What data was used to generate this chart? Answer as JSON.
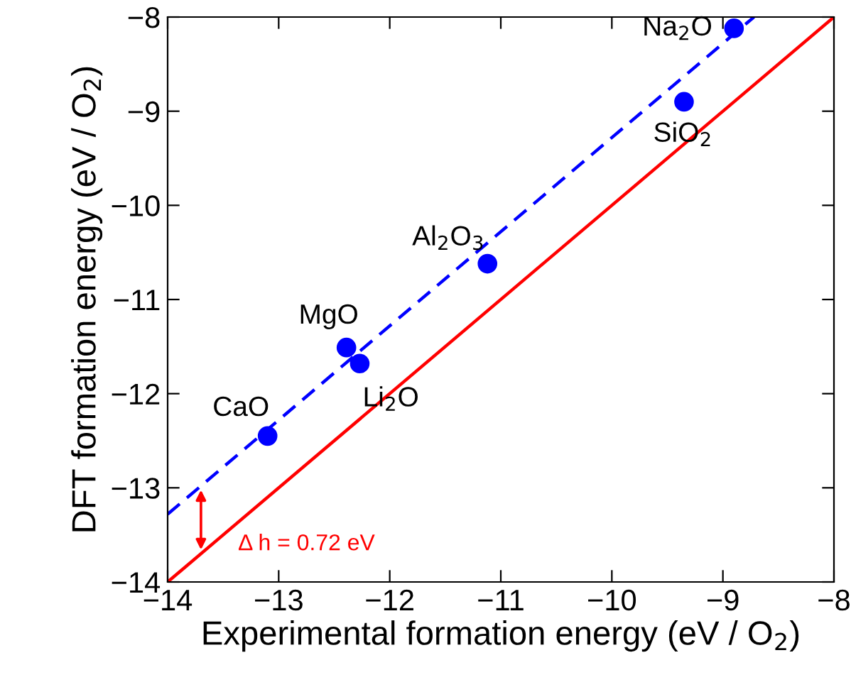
{
  "chart_data": {
    "type": "scatter",
    "xlabel": "Experimental formation energy (eV / O$_{2}$)",
    "ylabel": "DFT formation energy (eV / O$_{2}$)",
    "xlim": [
      -14,
      -8
    ],
    "ylim": [
      -14,
      -8
    ],
    "xticks": [
      {
        "value": -14,
        "label": "−14"
      },
      {
        "value": -13,
        "label": "−13"
      },
      {
        "value": -12,
        "label": "−12"
      },
      {
        "value": -11,
        "label": "−11"
      },
      {
        "value": -10,
        "label": "−10"
      },
      {
        "value": -9,
        "label": "−9"
      },
      {
        "value": -8,
        "label": "−8"
      }
    ],
    "yticks": [
      {
        "value": -14,
        "label": "−14"
      },
      {
        "value": -13,
        "label": "−13"
      },
      {
        "value": -12,
        "label": "−12"
      },
      {
        "value": -11,
        "label": "−11"
      },
      {
        "value": -10,
        "label": "−10"
      },
      {
        "value": -9,
        "label": "−9"
      },
      {
        "value": -8,
        "label": "−8"
      }
    ],
    "grid": false,
    "legend": false,
    "series": [
      {
        "type": "line",
        "color": "#ff0000",
        "line_style": "solid",
        "marker": "none",
        "x": [
          -14,
          -8
        ],
        "values": [
          -14,
          -8
        ]
      },
      {
        "type": "line",
        "color": "#0000ff",
        "line_style": "dashed",
        "marker": "none",
        "x": [
          -14,
          -8.72
        ],
        "values": [
          -13.28,
          -8
        ]
      },
      {
        "color": "#0000ff",
        "marker": "circle",
        "x": [
          -13.1,
          -12.39,
          -12.27,
          -11.12,
          -9.35,
          -8.9
        ],
        "values": [
          -12.45,
          -11.51,
          -11.68,
          -10.62,
          -8.9,
          -8.12
        ]
      }
    ],
    "annotations": [
      {
        "text": "CaO",
        "x": -13.1,
        "y": -12.45
      },
      {
        "text": "MgO",
        "x": -12.39,
        "y": -11.51
      },
      {
        "text": "Li$_{2}$O",
        "x": -12.27,
        "y": -11.68
      },
      {
        "text": "Al$_{2}$O$_{3}$",
        "x": -11.12,
        "y": -10.62
      },
      {
        "text": "SiO$_{2}$",
        "x": -9.35,
        "y": -8.9
      },
      {
        "text": "Na$_{2}$O",
        "x": -8.9,
        "y": -8.12
      },
      "Δ h = 0.72 eV"
    ]
  }
}
